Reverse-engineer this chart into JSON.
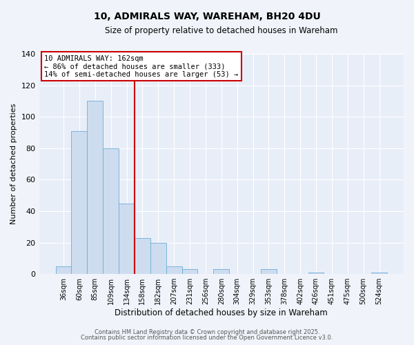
{
  "title": "10, ADMIRALS WAY, WAREHAM, BH20 4DU",
  "subtitle": "Size of property relative to detached houses in Wareham",
  "xlabel": "Distribution of detached houses by size in Wareham",
  "ylabel": "Number of detached properties",
  "bar_color": "#cddcef",
  "bar_edge_color": "#6baed6",
  "plot_bg_color": "#e8eef8",
  "fig_bg_color": "#f0f4fa",
  "grid_color": "#ffffff",
  "categories": [
    "36sqm",
    "60sqm",
    "85sqm",
    "109sqm",
    "134sqm",
    "158sqm",
    "182sqm",
    "207sqm",
    "231sqm",
    "256sqm",
    "280sqm",
    "304sqm",
    "329sqm",
    "353sqm",
    "378sqm",
    "402sqm",
    "426sqm",
    "451sqm",
    "475sqm",
    "500sqm",
    "524sqm"
  ],
  "values": [
    5,
    91,
    110,
    80,
    45,
    23,
    20,
    5,
    3,
    0,
    3,
    0,
    0,
    3,
    0,
    0,
    1,
    0,
    0,
    0,
    1
  ],
  "vline_index": 5,
  "vline_color": "#cc0000",
  "annotation_title": "10 ADMIRALS WAY: 162sqm",
  "annotation_line1": "← 86% of detached houses are smaller (333)",
  "annotation_line2": "14% of semi-detached houses are larger (53) →",
  "ylim": [
    0,
    140
  ],
  "yticks": [
    0,
    20,
    40,
    60,
    80,
    100,
    120,
    140
  ],
  "footer1": "Contains HM Land Registry data © Crown copyright and database right 2025.",
  "footer2": "Contains public sector information licensed under the Open Government Licence v3.0."
}
